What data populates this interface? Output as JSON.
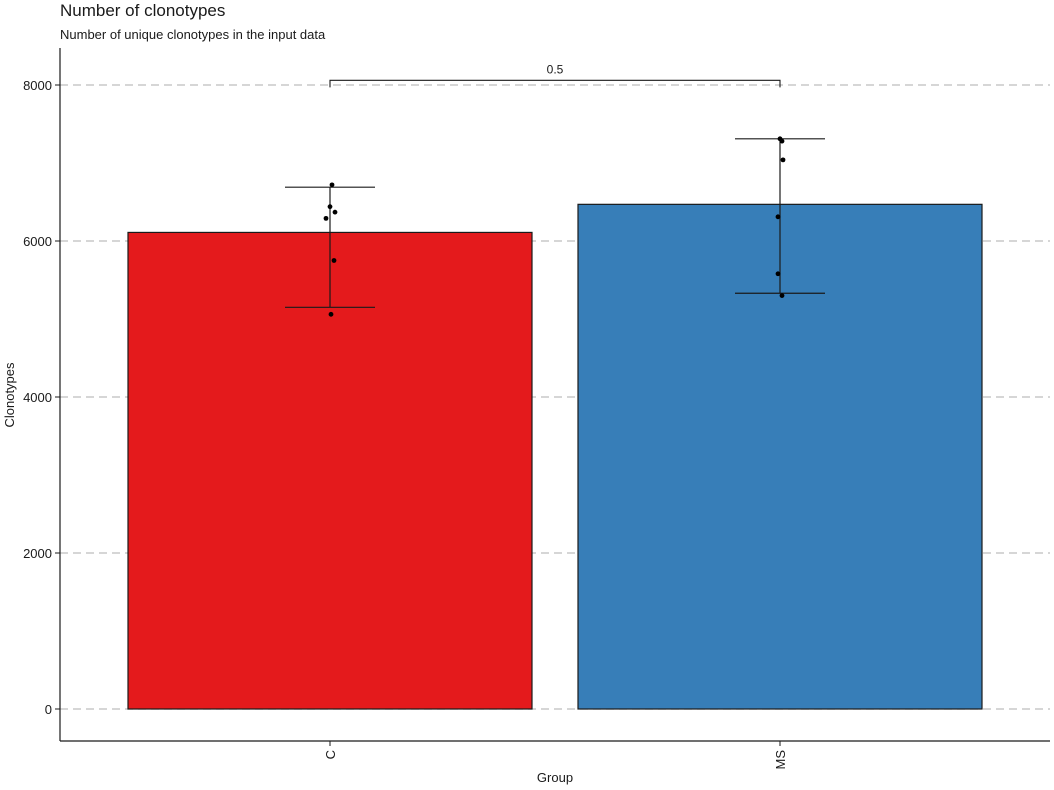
{
  "chart_data": {
    "type": "bar",
    "title": "Number of clonotypes",
    "subtitle": "Number of unique clonotypes in the input data",
    "xlabel": "Group",
    "ylabel": "Clonotypes",
    "categories": [
      "C",
      "MS"
    ],
    "values": [
      6110,
      6470
    ],
    "error_bars": [
      {
        "low": 5150,
        "high": 6690
      },
      {
        "low": 5330,
        "high": 7310
      }
    ],
    "points": [
      [
        6720,
        6440,
        6370,
        6290,
        5750,
        5060
      ],
      [
        7310,
        7280,
        7040,
        6310,
        5580,
        5300
      ]
    ],
    "colors": [
      "#E41A1C",
      "#377EB8"
    ],
    "ylim": [
      0,
      8000
    ],
    "yticks": [
      0,
      2000,
      4000,
      6000,
      8000
    ],
    "grid": "horizontal dashed",
    "legend": "none",
    "significance": {
      "label": "0.5",
      "between": [
        "C",
        "MS"
      ],
      "y": 8060
    }
  }
}
